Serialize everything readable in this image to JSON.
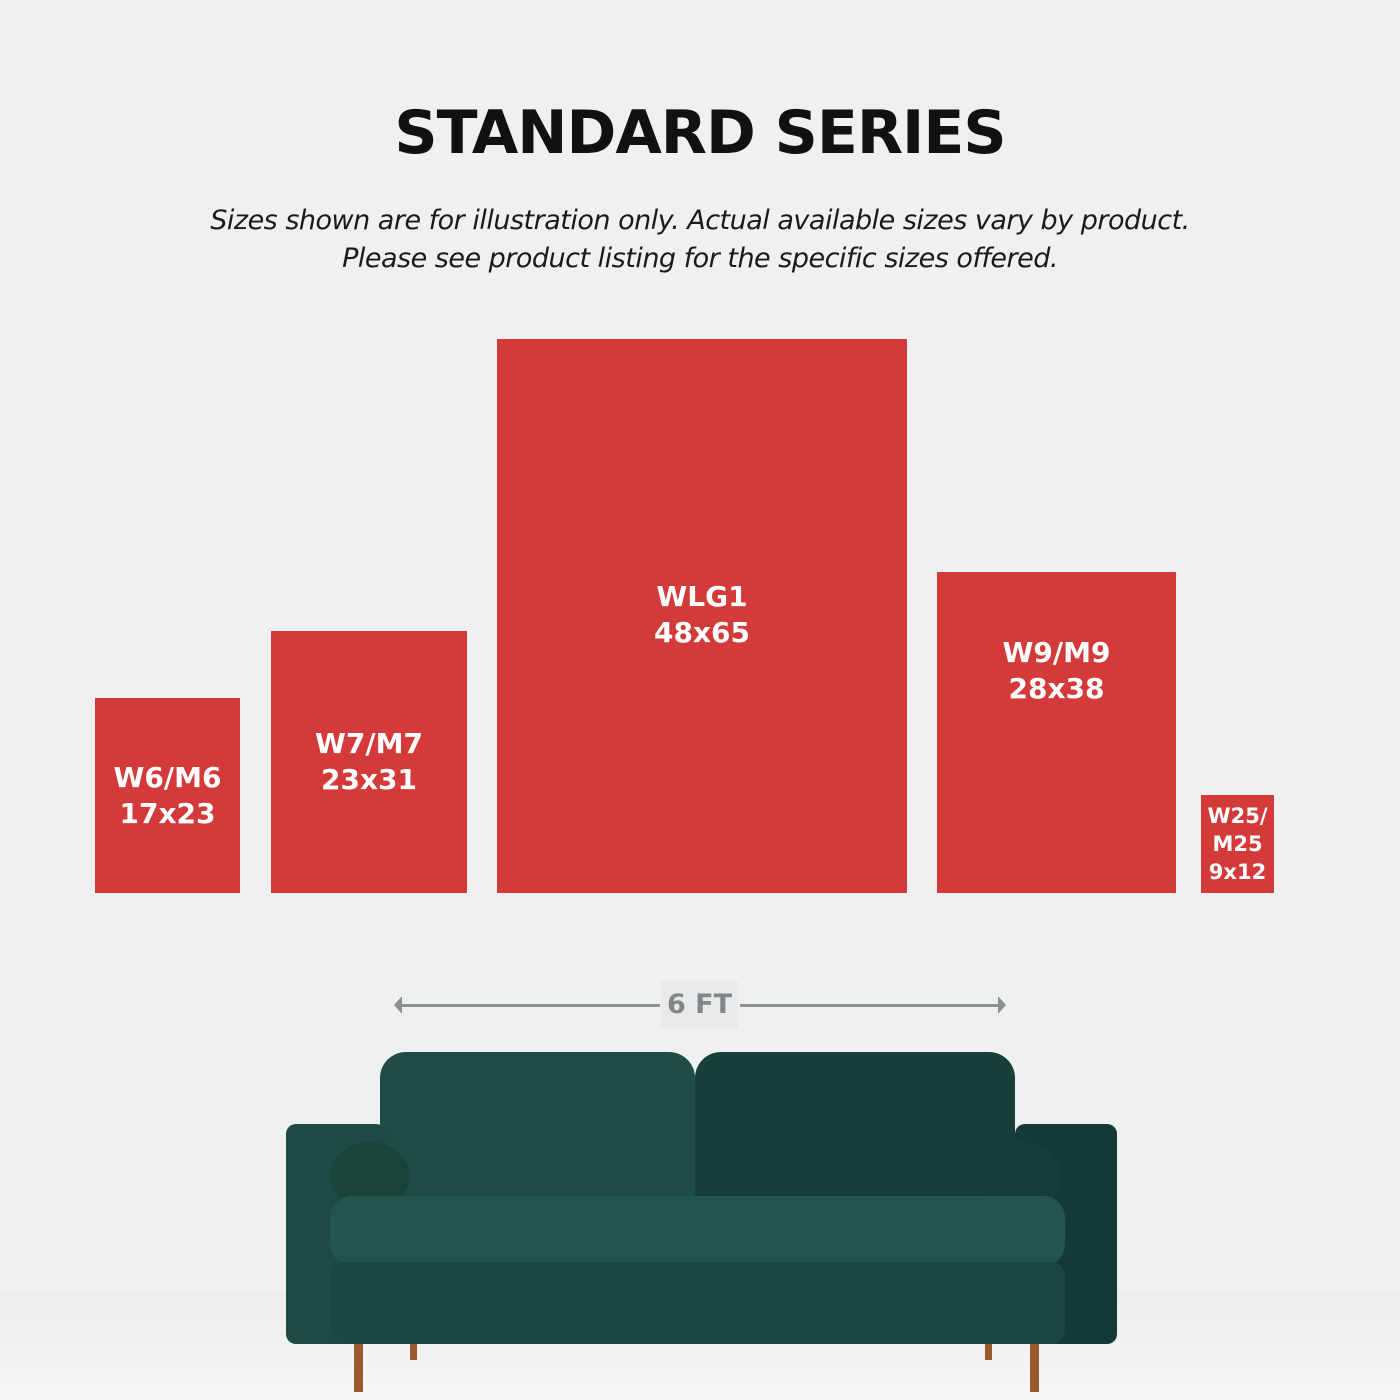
{
  "title": "STANDARD SERIES",
  "subtitle_line1": "Sizes shown are for illustration only. Actual available sizes vary by product.",
  "subtitle_line2": "Please see product listing for the specific sizes offered.",
  "sizes": [
    {
      "code": "W6/M6",
      "dims": "17x23"
    },
    {
      "code": "W7/M7",
      "dims": "23x31"
    },
    {
      "code": "WLG1",
      "dims": "48x65"
    },
    {
      "code": "W9/M9",
      "dims": "28x38"
    },
    {
      "code": "W25/",
      "code2": "M25",
      "dims": "9x12"
    }
  ],
  "scale_label": "6 FT",
  "colors": {
    "box": "#d43a3a",
    "sofa": "#1f4a43",
    "arrow": "#8a9294"
  }
}
